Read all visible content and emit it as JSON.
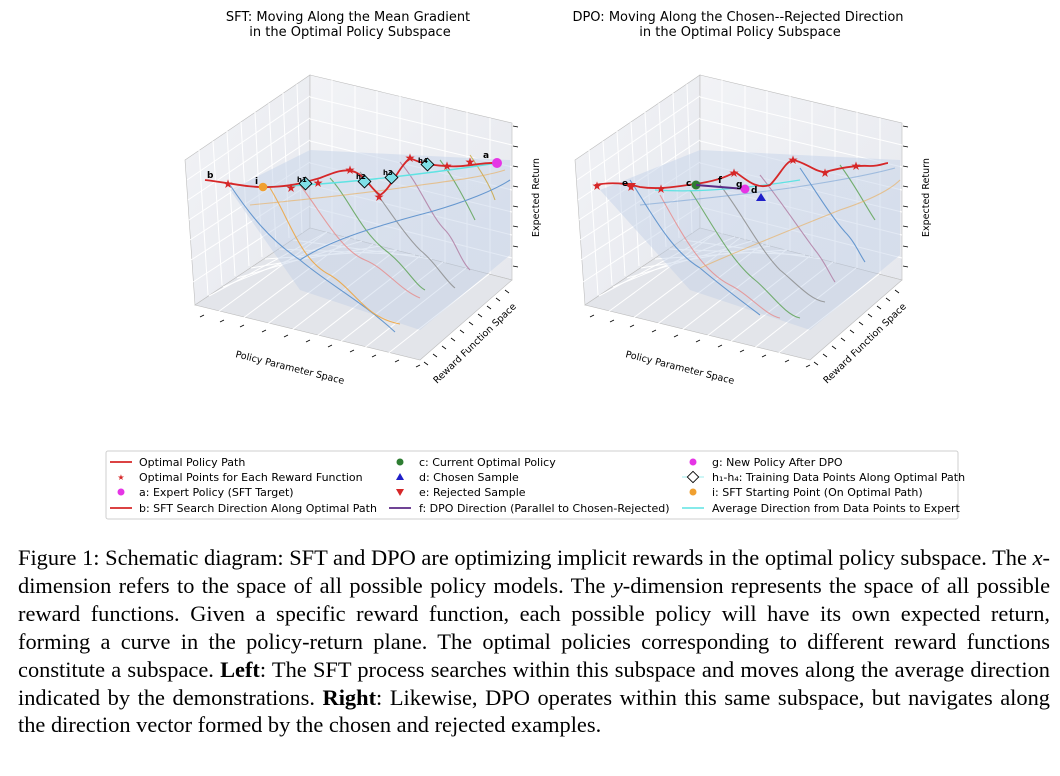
{
  "left_panel": {
    "title_line1": "SFT: Moving Along the Mean Gradient",
    "title_line2": "in the Optimal Policy Subspace",
    "xlabel": "Policy Parameter Space",
    "ylabel": "Reward Function Space",
    "zlabel": "Expected Return",
    "labels": {
      "a": "a",
      "b": "b",
      "i": "i",
      "h1": "h1",
      "h2": "h2",
      "h3": "h3",
      "h4": "h4"
    }
  },
  "right_panel": {
    "title_line1": "DPO: Moving Along the Chosen--Rejected Direction",
    "title_line2": "in the Optimal Policy Subspace",
    "xlabel": "Policy Parameter Space",
    "ylabel": "Reward Function Space",
    "zlabel": "Expected Return",
    "labels": {
      "c": "c",
      "d": "d",
      "e": "e",
      "f": "f",
      "g": "g"
    }
  },
  "legend": {
    "col1": [
      "Optimal Policy Path",
      "Optimal Points for Each Reward Function",
      "a: Expert Policy (SFT Target)",
      "b: SFT Search Direction Along Optimal Path"
    ],
    "col2": [
      "c: Current Optimal Policy",
      "d: Chosen Sample",
      "e: Rejected Sample",
      "f: DPO Direction (Parallel to Chosen-Rejected)"
    ],
    "col3": [
      "g: New Policy After DPO",
      "h₁-h₄: Training Data Points Along Optimal Path",
      "i: SFT Starting Point (On Optimal Path)",
      "Average Direction from Data Points to Expert"
    ]
  },
  "colors": {
    "red": "#d62728",
    "magenta": "#e535e5",
    "green": "#2e7d32",
    "blue": "#1f1fc8",
    "purple": "#5b2a86",
    "orange": "#f0a030",
    "cyan": "#5fe3e3",
    "diamond": "#7fe0e8"
  },
  "caption": {
    "p1": "Figure 1: Schematic diagram: SFT and DPO are optimizing implicit rewards in the optimal policy subspace.  The ",
    "x": "x",
    "p2": "-dimension refers to the space of all possible policy models.  The ",
    "y": "y",
    "p3": "-dimension represents the space of all possible reward functions. Given a specific reward function, each possible policy will have its own expected return, forming a curve in the policy-return plane. The optimal policies corresponding to different reward functions constitute a subspace. ",
    "left_bold": "Left",
    "p4": ": The SFT process searches within this subspace and moves along the average direction indicated by the demonstrations. ",
    "right_bold": "Right",
    "p5": ": Likewise, DPO operates within this same subspace, but navigates along the direction vector formed by the chosen and rejected examples."
  }
}
